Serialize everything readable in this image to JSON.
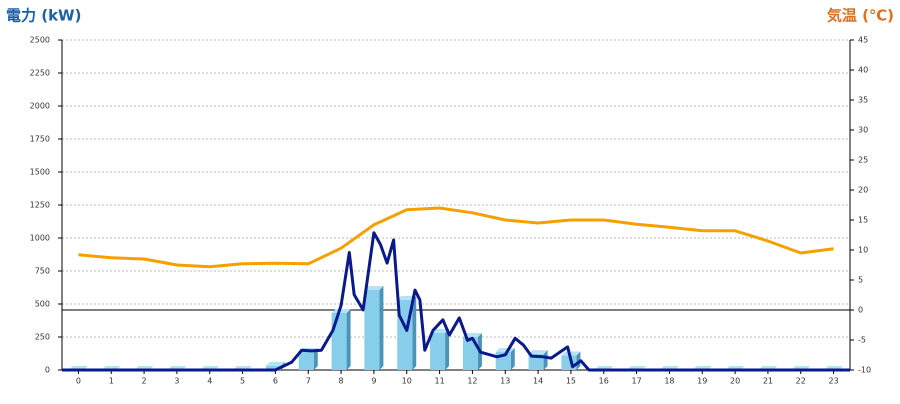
{
  "chart_data": {
    "type": "bar-line",
    "y_label": "電力 (kW)",
    "y2_label": "気温 (℃)",
    "categories": [
      "0",
      "1",
      "2",
      "3",
      "4",
      "5",
      "6",
      "7",
      "8",
      "9",
      "10",
      "11",
      "12",
      "13",
      "14",
      "15",
      "16",
      "17",
      "18",
      "19",
      "20",
      "21",
      "22",
      "23"
    ],
    "ylim": [
      0,
      2500
    ],
    "yticks": [
      0,
      250,
      500,
      750,
      1000,
      1250,
      1500,
      1750,
      2000,
      2250,
      2500
    ],
    "y2lim": [
      -10,
      45
    ],
    "y2ticks": [
      -10,
      -5,
      0,
      5,
      10,
      15,
      20,
      25,
      30,
      35,
      40,
      45
    ],
    "grid": true,
    "series": [
      {
        "type": "bar",
        "color": "#87ceeb",
        "values": [
          0,
          0,
          0,
          0,
          0,
          0,
          30,
          136,
          432,
          606,
          530,
          280,
          250,
          136,
          120,
          110,
          0,
          0,
          0,
          0,
          0,
          0,
          0,
          0
        ]
      },
      {
        "type": "line",
        "color": "#0a1a8c",
        "x": [
          -0.5,
          6.0,
          6.5,
          6.8,
          7.1,
          7.4,
          7.75,
          8.0,
          8.25,
          8.4,
          8.67,
          9.0,
          9.2,
          9.4,
          9.6,
          9.77,
          10.0,
          10.25,
          10.4,
          10.55,
          10.8,
          11.1,
          11.3,
          11.6,
          11.85,
          12.0,
          12.25,
          12.75,
          13.0,
          13.3,
          13.55,
          13.8,
          14.15,
          14.4,
          14.9,
          15.05,
          15.3,
          15.55,
          23.5
        ],
        "values": [
          0,
          0,
          60,
          150,
          145,
          150,
          300,
          490,
          890,
          570,
          455,
          1040,
          950,
          810,
          985,
          415,
          300,
          605,
          530,
          150,
          300,
          380,
          265,
          395,
          225,
          240,
          135,
          100,
          115,
          240,
          190,
          105,
          100,
          90,
          175,
          25,
          70,
          0,
          0
        ]
      },
      {
        "type": "line",
        "color": "#f5a000",
        "axis": "y2",
        "values": [
          9.2,
          8.7,
          8.5,
          7.5,
          7.2,
          7.7,
          7.8,
          7.7,
          10.3,
          14.2,
          16.7,
          17.0,
          16.2,
          15.0,
          14.5,
          15.0,
          15.0,
          14.3,
          13.8,
          13.2,
          13.2,
          11.5,
          9.5,
          10.2
        ]
      }
    ]
  }
}
